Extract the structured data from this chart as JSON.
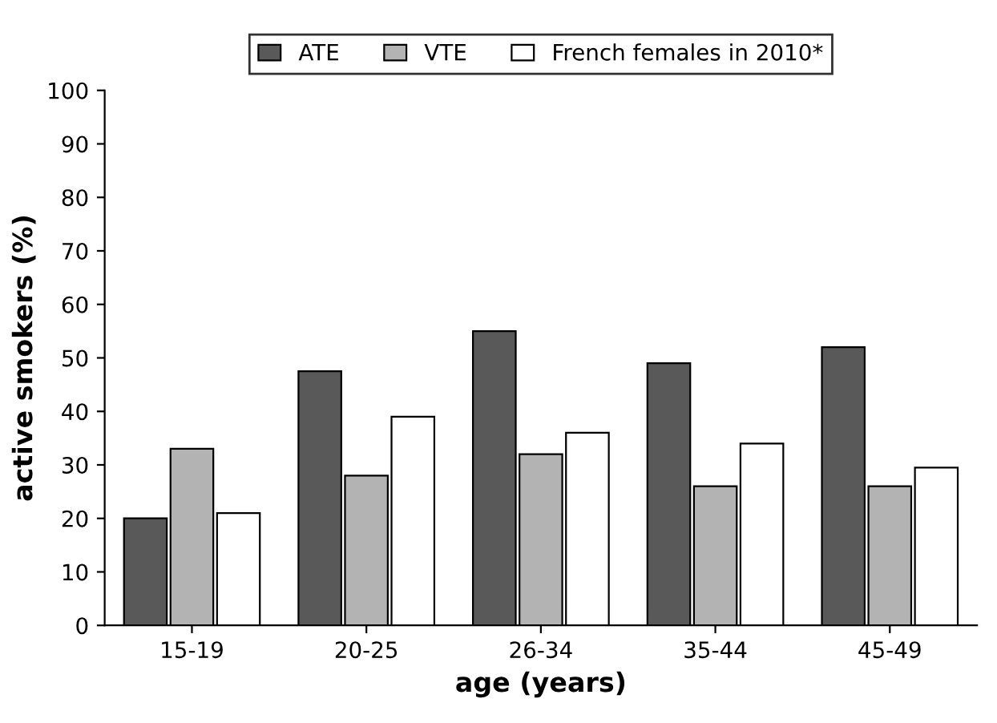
{
  "chart_data": {
    "type": "bar",
    "xlabel": "age (years)",
    "ylabel": "active smokers (%)",
    "categories": [
      "15-19",
      "20-25",
      "26-34",
      "35-44",
      "45-49"
    ],
    "series": [
      {
        "name": "ATE",
        "color": "#595959",
        "values": [
          20,
          47.5,
          55,
          49,
          52
        ]
      },
      {
        "name": "VTE",
        "color": "#b3b3b3",
        "values": [
          33,
          28,
          32,
          26,
          26
        ]
      },
      {
        "name": "French females in 2010*",
        "color": "#ffffff",
        "values": [
          21,
          39,
          36,
          34,
          29.5
        ]
      }
    ],
    "ylim": [
      0,
      100
    ],
    "yticks": [
      0,
      10,
      20,
      30,
      40,
      50,
      60,
      70,
      80,
      90,
      100
    ],
    "grid": false,
    "legend": "top"
  }
}
